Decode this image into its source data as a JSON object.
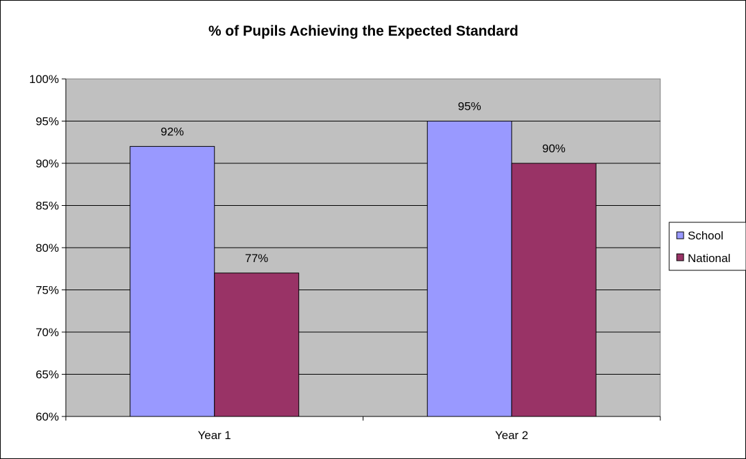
{
  "chart_data": {
    "type": "bar",
    "title": "% of Pupils Achieving the Expected Standard",
    "xlabel": "",
    "ylabel": "",
    "categories": [
      "Year 1",
      "Year 2"
    ],
    "series": [
      {
        "name": "School",
        "values": [
          92,
          95
        ],
        "color": "#9999ff",
        "labels": [
          "92%",
          "95%"
        ]
      },
      {
        "name": "National",
        "values": [
          77,
          90
        ],
        "color": "#993366",
        "labels": [
          "77%",
          "90%"
        ]
      }
    ],
    "ylim": [
      60,
      100
    ],
    "yticks": [
      60,
      65,
      70,
      75,
      80,
      85,
      90,
      95,
      100
    ],
    "ytick_labels": [
      "60%",
      "65%",
      "70%",
      "75%",
      "80%",
      "85%",
      "90%",
      "95%",
      "100%"
    ],
    "plot_background": "#c0c0c0",
    "grid": true,
    "legend_position": "right"
  }
}
